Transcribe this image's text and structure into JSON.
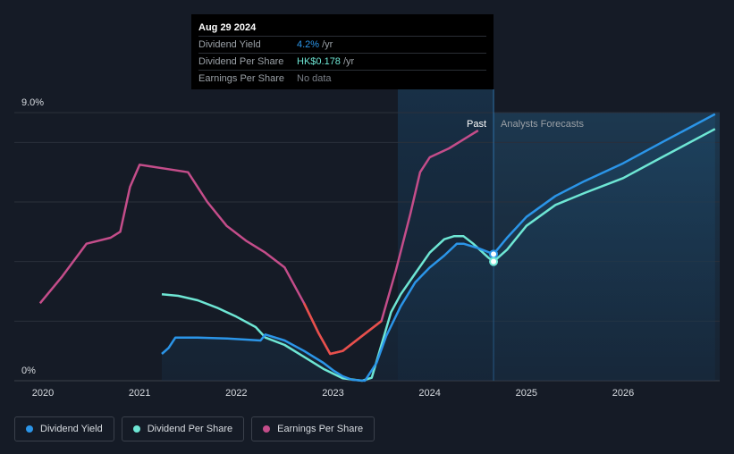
{
  "tooltip": {
    "date": "Aug 29 2024",
    "rows": [
      {
        "label": "Dividend Yield",
        "value": "4.2%",
        "unit": "/yr"
      },
      {
        "label": "Dividend Per Share",
        "value": "HK$0.178",
        "unit": "/yr"
      },
      {
        "label": "Earnings Per Share",
        "value": "No data",
        "unit": ""
      }
    ]
  },
  "legend": {
    "items": [
      {
        "label": "Dividend Yield"
      },
      {
        "label": "Dividend Per Share"
      },
      {
        "label": "Earnings Per Share"
      }
    ]
  },
  "chart_data": {
    "type": "line",
    "title": "",
    "xlabel": "",
    "ylabel": "",
    "x_tick_labels": [
      "2020",
      "2021",
      "2022",
      "2023",
      "2024",
      "2025",
      "2026"
    ],
    "y_tick_labels": [
      "9.0%",
      "0%"
    ],
    "ylim": [
      0,
      9.0
    ],
    "xlim": [
      2019.97,
      2026.95
    ],
    "grid": true,
    "legend_position": "bottom-left",
    "annotations": {
      "past_label": "Past",
      "forecast_label": "Analysts Forecasts",
      "divider_x": 2024.66,
      "highlight_start_x": 2023.67
    },
    "colors": {
      "dividend_yield": "#2b95e8",
      "dividend_per_share": "#6ee6d4",
      "earnings_per_share": "#c44d8a",
      "earnings_negative": "#e8504a"
    },
    "series": [
      {
        "name": "Dividend Yield",
        "x": [
          2021.23,
          2021.3,
          2021.37,
          2021.6,
          2021.9,
          2022.1,
          2022.25,
          2022.3,
          2022.5,
          2022.7,
          2022.9,
          2023.0,
          2023.1,
          2023.2,
          2023.33,
          2023.45,
          2023.55,
          2023.7,
          2023.85,
          2024.0,
          2024.15,
          2024.28,
          2024.35,
          2024.5,
          2024.66,
          2024.8,
          2025.0,
          2025.3,
          2025.6,
          2026.0,
          2026.4,
          2026.95
        ],
        "y": [
          0.9,
          1.1,
          1.45,
          1.45,
          1.42,
          1.38,
          1.35,
          1.55,
          1.35,
          1.0,
          0.6,
          0.35,
          0.15,
          0.03,
          0.0,
          0.6,
          1.5,
          2.5,
          3.3,
          3.8,
          4.2,
          4.6,
          4.6,
          4.45,
          4.25,
          4.8,
          5.5,
          6.2,
          6.7,
          7.3,
          8.0,
          8.95
        ]
      },
      {
        "name": "Dividend Per Share",
        "x": [
          2021.23,
          2021.4,
          2021.6,
          2021.8,
          2022.0,
          2022.2,
          2022.3,
          2022.5,
          2022.7,
          2022.9,
          2023.1,
          2023.3,
          2023.4,
          2023.5,
          2023.6,
          2023.7,
          2023.85,
          2024.0,
          2024.15,
          2024.25,
          2024.35,
          2024.45,
          2024.6,
          2024.66,
          2024.8,
          2025.0,
          2025.3,
          2025.6,
          2026.0,
          2026.4,
          2026.95
        ],
        "y": [
          2.9,
          2.85,
          2.7,
          2.45,
          2.15,
          1.8,
          1.45,
          1.2,
          0.8,
          0.4,
          0.08,
          0.0,
          0.1,
          1.2,
          2.3,
          2.9,
          3.6,
          4.3,
          4.75,
          4.85,
          4.85,
          4.6,
          4.15,
          4.0,
          4.4,
          5.2,
          5.9,
          6.3,
          6.8,
          7.5,
          8.45
        ]
      },
      {
        "name": "Earnings Per Share",
        "x": [
          2019.97,
          2020.2,
          2020.45,
          2020.7,
          2020.8,
          2020.9,
          2021.0,
          2021.1,
          2021.3,
          2021.5,
          2021.7,
          2021.9,
          2022.1,
          2022.3,
          2022.5,
          2022.7,
          2022.85,
          2022.97,
          2023.1,
          2023.3,
          2023.5,
          2023.65,
          2023.8,
          2023.9,
          2024.0,
          2024.2,
          2024.4,
          2024.5
        ],
        "y": [
          2.6,
          3.5,
          4.6,
          4.8,
          5.0,
          6.5,
          7.25,
          7.2,
          7.1,
          7.0,
          6.0,
          5.2,
          4.7,
          4.3,
          3.8,
          2.6,
          1.6,
          0.9,
          1.0,
          1.5,
          2.0,
          3.7,
          5.6,
          7.0,
          7.5,
          7.8,
          8.2,
          8.4
        ]
      }
    ]
  }
}
